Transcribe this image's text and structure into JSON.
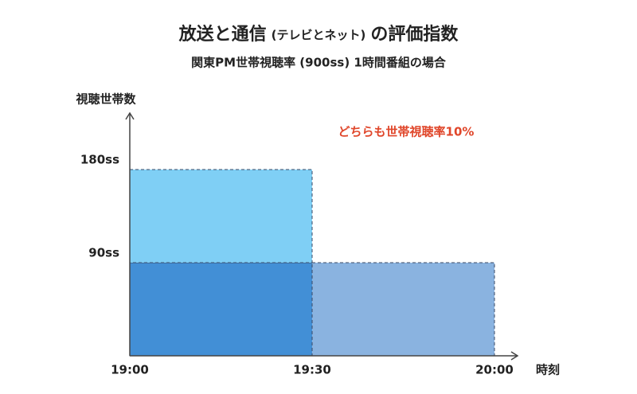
{
  "chart_data": {
    "type": "stacked-block",
    "title": [
      "放送と通信",
      "(テレビとネット)",
      "の評価指数"
    ],
    "subtitle": "関東PM世帯視聴率 (900ss) 1時間番組の場合",
    "y_label": "視聴世帯数",
    "x_label": "時刻",
    "annotation": "どちらも世帯視聴率10%",
    "x_edges": [
      "19:00",
      "19:30",
      "20:00"
    ],
    "series": [
      {
        "colors": [
          "#428fd6",
          "#8ab3e0"
        ],
        "values": [
          90,
          90
        ]
      },
      {
        "colors": [
          "#7fcff5",
          "#7fcff5"
        ],
        "values": [
          90,
          null
        ]
      }
    ],
    "ylim": [
      0,
      230
    ],
    "yticks": [
      {
        "value": 90,
        "label": "90ss"
      },
      {
        "value": 180,
        "label": "180ss"
      }
    ]
  }
}
